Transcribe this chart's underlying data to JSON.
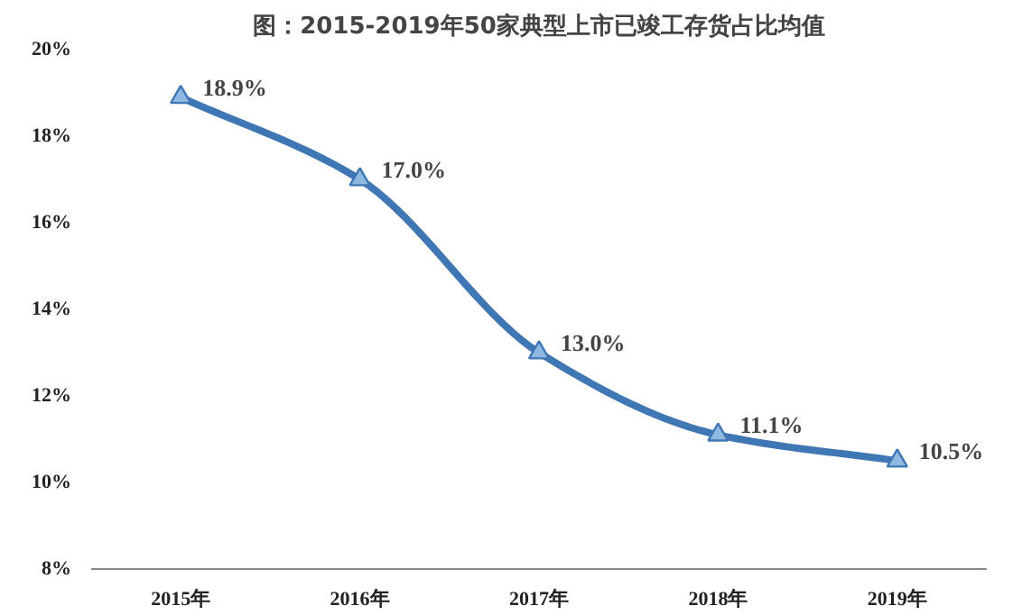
{
  "chart_data": {
    "type": "line",
    "title": "图：2015-2019年50家典型上市已竣工存货占比均值",
    "categories": [
      "2015年",
      "2016年",
      "2017年",
      "2018年",
      "2019年"
    ],
    "series": [
      {
        "color": "#3f76b4",
        "values": [
          18.9,
          17.0,
          13.0,
          11.1,
          10.5
        ],
        "value_labels": [
          "18.9%",
          "17.0%",
          "13.0%",
          "11.1%",
          "10.5%"
        ]
      }
    ],
    "ylim": [
      8,
      20
    ],
    "yticks": [
      {
        "value": 8,
        "label": "8%"
      },
      {
        "value": 10,
        "label": "10%"
      },
      {
        "value": 12,
        "label": "12%"
      },
      {
        "value": 14,
        "label": "14%"
      },
      {
        "value": 16,
        "label": "16%"
      },
      {
        "value": 18,
        "label": "18%"
      },
      {
        "value": 20,
        "label": "20%"
      }
    ],
    "grid": false,
    "marker": "triangle",
    "line_style": "solid"
  }
}
